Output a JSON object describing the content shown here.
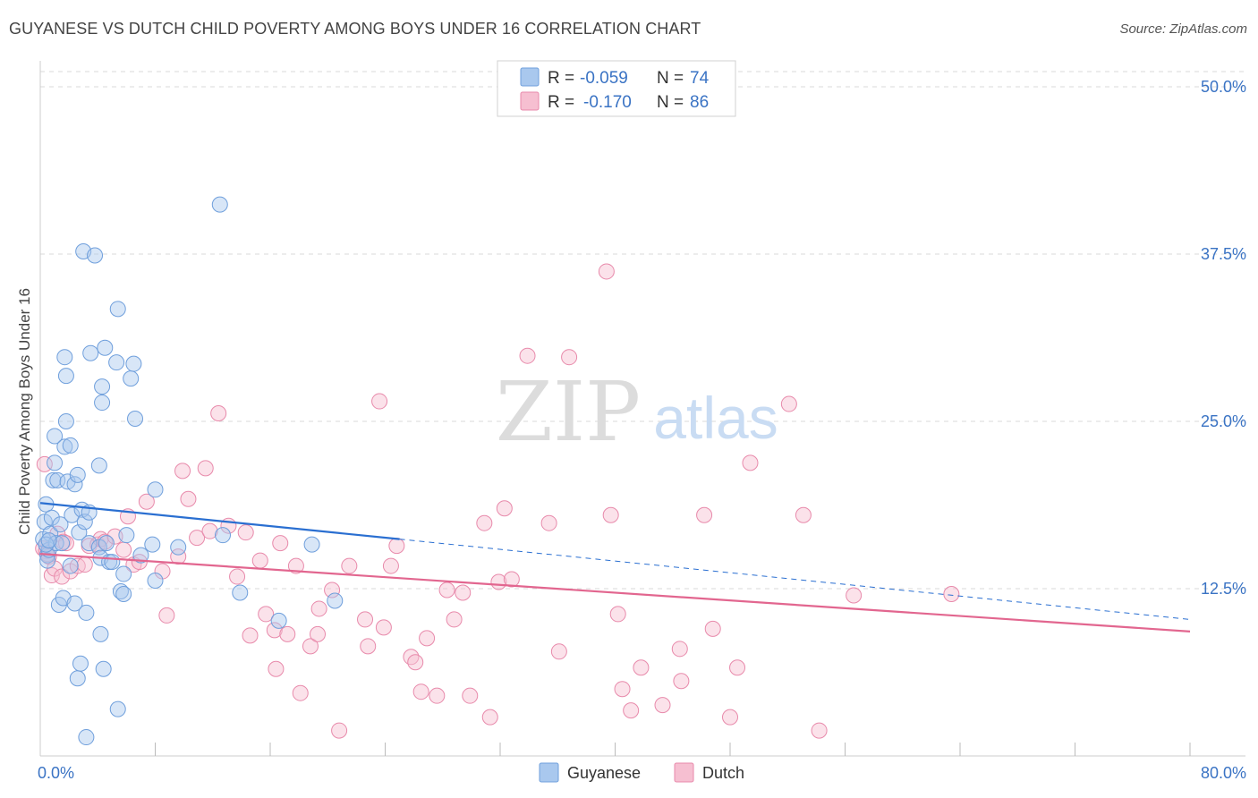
{
  "title": "GUYANESE VS DUTCH CHILD POVERTY AMONG BOYS UNDER 16 CORRELATION CHART",
  "source": "Source: ZipAtlas.com",
  "watermark": {
    "zip": "ZIP",
    "atlas": "atlas"
  },
  "colors": {
    "guyanese_fill": "#a9c8ee",
    "guyanese_stroke": "#6f9fdc",
    "guyanese_line": "#2a6fd1",
    "dutch_fill": "#f6bfd1",
    "dutch_stroke": "#e88aab",
    "dutch_line": "#e2668f",
    "tick_text": "#3a73c4",
    "grid": "#d9d9d9"
  },
  "stats": [
    {
      "r_label": "R =",
      "r": "-0.059",
      "n_label": "N =",
      "n": "74"
    },
    {
      "r_label": "R =",
      "r": "-0.170",
      "n_label": "N =",
      "n": "86"
    }
  ],
  "chart_data": {
    "type": "scatter",
    "title": "GUYANESE VS DUTCH CHILD POVERTY AMONG BOYS UNDER 16 CORRELATION CHART",
    "xlabel": "",
    "ylabel": "Child Poverty Among Boys Under 16",
    "xlim": [
      0,
      80
    ],
    "ylim": [
      0,
      50
    ],
    "grid": true,
    "y_ticks": [
      12.5,
      25.0,
      37.5,
      50.0
    ],
    "y_tick_labels": [
      "12.5%",
      "25.0%",
      "37.5%",
      "50.0%"
    ],
    "x_tick_labels": [
      "0.0%",
      "80.0%"
    ],
    "legend": [
      "Guyanese",
      "Dutch"
    ],
    "legend_position": "bottom-center",
    "series": [
      {
        "name": "Guyanese",
        "points": [
          [
            0.2,
            16.2
          ],
          [
            0.3,
            17.5
          ],
          [
            0.4,
            18.8
          ],
          [
            0.5,
            15.0
          ],
          [
            0.5,
            14.6
          ],
          [
            0.6,
            15.4
          ],
          [
            0.7,
            16.6
          ],
          [
            0.8,
            17.8
          ],
          [
            0.9,
            20.6
          ],
          [
            1.0,
            23.9
          ],
          [
            1.0,
            21.9
          ],
          [
            1.1,
            15.9
          ],
          [
            1.2,
            20.6
          ],
          [
            1.3,
            11.3
          ],
          [
            1.4,
            17.3
          ],
          [
            1.5,
            15.9
          ],
          [
            1.6,
            11.8
          ],
          [
            1.7,
            23.1
          ],
          [
            1.7,
            29.8
          ],
          [
            1.8,
            25.0
          ],
          [
            1.8,
            28.4
          ],
          [
            1.9,
            20.5
          ],
          [
            2.1,
            23.2
          ],
          [
            2.1,
            14.2
          ],
          [
            2.2,
            18.0
          ],
          [
            2.4,
            11.4
          ],
          [
            2.4,
            20.3
          ],
          [
            2.6,
            21.0
          ],
          [
            2.6,
            5.8
          ],
          [
            2.7,
            16.7
          ],
          [
            2.8,
            6.9
          ],
          [
            2.9,
            18.4
          ],
          [
            3.0,
            37.7
          ],
          [
            3.1,
            17.5
          ],
          [
            3.2,
            1.4
          ],
          [
            3.2,
            10.7
          ],
          [
            3.4,
            18.2
          ],
          [
            3.4,
            15.9
          ],
          [
            3.5,
            30.1
          ],
          [
            3.8,
            37.4
          ],
          [
            4.1,
            15.6
          ],
          [
            4.1,
            21.7
          ],
          [
            4.2,
            14.8
          ],
          [
            4.2,
            9.1
          ],
          [
            4.3,
            26.4
          ],
          [
            4.3,
            27.6
          ],
          [
            4.4,
            6.5
          ],
          [
            4.5,
            30.5
          ],
          [
            4.6,
            15.9
          ],
          [
            4.8,
            14.5
          ],
          [
            5.0,
            14.5
          ],
          [
            5.3,
            29.4
          ],
          [
            5.4,
            33.4
          ],
          [
            5.4,
            3.5
          ],
          [
            5.6,
            12.3
          ],
          [
            5.8,
            13.6
          ],
          [
            5.8,
            12.1
          ],
          [
            6.0,
            16.5
          ],
          [
            6.3,
            28.2
          ],
          [
            6.5,
            29.3
          ],
          [
            6.6,
            25.2
          ],
          [
            7.0,
            15.0
          ],
          [
            7.8,
            15.8
          ],
          [
            8.0,
            19.9
          ],
          [
            8.0,
            13.1
          ],
          [
            9.6,
            15.6
          ],
          [
            12.5,
            41.2
          ],
          [
            12.7,
            16.5
          ],
          [
            13.9,
            12.2
          ],
          [
            16.6,
            10.1
          ],
          [
            18.9,
            15.8
          ],
          [
            20.5,
            11.6
          ],
          [
            0.4,
            15.8
          ],
          [
            0.6,
            16.1
          ]
        ]
      },
      {
        "name": "Dutch",
        "points": [
          [
            0.2,
            15.5
          ],
          [
            0.3,
            21.8
          ],
          [
            0.4,
            15.3
          ],
          [
            0.5,
            15.1
          ],
          [
            0.6,
            14.9
          ],
          [
            0.8,
            13.5
          ],
          [
            1.0,
            14.0
          ],
          [
            1.2,
            16.6
          ],
          [
            1.5,
            13.4
          ],
          [
            1.6,
            16.0
          ],
          [
            1.8,
            15.9
          ],
          [
            2.1,
            13.8
          ],
          [
            2.6,
            14.2
          ],
          [
            3.1,
            14.3
          ],
          [
            3.4,
            15.7
          ],
          [
            4.0,
            15.8
          ],
          [
            4.2,
            16.2
          ],
          [
            4.5,
            16.0
          ],
          [
            5.2,
            16.4
          ],
          [
            5.8,
            15.4
          ],
          [
            6.1,
            17.9
          ],
          [
            6.5,
            14.3
          ],
          [
            6.9,
            14.5
          ],
          [
            7.4,
            19.0
          ],
          [
            8.5,
            13.8
          ],
          [
            8.8,
            10.5
          ],
          [
            9.6,
            14.9
          ],
          [
            9.9,
            21.3
          ],
          [
            10.3,
            19.2
          ],
          [
            10.9,
            16.3
          ],
          [
            11.5,
            21.5
          ],
          [
            11.8,
            16.8
          ],
          [
            12.4,
            25.6
          ],
          [
            13.1,
            17.2
          ],
          [
            13.7,
            13.4
          ],
          [
            14.3,
            16.7
          ],
          [
            14.6,
            9.0
          ],
          [
            15.3,
            14.6
          ],
          [
            15.7,
            10.6
          ],
          [
            16.3,
            9.4
          ],
          [
            16.4,
            6.5
          ],
          [
            16.7,
            15.9
          ],
          [
            17.2,
            9.1
          ],
          [
            17.8,
            14.2
          ],
          [
            18.1,
            4.7
          ],
          [
            18.8,
            8.2
          ],
          [
            19.3,
            9.1
          ],
          [
            19.4,
            11.0
          ],
          [
            20.3,
            12.4
          ],
          [
            20.8,
            1.9
          ],
          [
            21.5,
            14.2
          ],
          [
            22.6,
            10.2
          ],
          [
            22.8,
            8.2
          ],
          [
            23.6,
            26.5
          ],
          [
            23.9,
            9.6
          ],
          [
            24.4,
            14.2
          ],
          [
            24.8,
            15.7
          ],
          [
            25.8,
            7.4
          ],
          [
            26.1,
            7.0
          ],
          [
            26.5,
            4.8
          ],
          [
            26.9,
            8.8
          ],
          [
            27.6,
            4.5
          ],
          [
            28.3,
            12.4
          ],
          [
            28.8,
            10.2
          ],
          [
            29.4,
            12.2
          ],
          [
            29.9,
            4.5
          ],
          [
            30.9,
            17.4
          ],
          [
            31.3,
            2.9
          ],
          [
            31.9,
            13.0
          ],
          [
            32.3,
            18.5
          ],
          [
            32.8,
            13.2
          ],
          [
            33.9,
            29.9
          ],
          [
            35.4,
            17.4
          ],
          [
            36.1,
            7.8
          ],
          [
            36.8,
            29.8
          ],
          [
            39.4,
            36.2
          ],
          [
            39.7,
            18.0
          ],
          [
            40.2,
            10.6
          ],
          [
            40.5,
            5.0
          ],
          [
            41.1,
            3.4
          ],
          [
            41.8,
            6.6
          ],
          [
            43.3,
            3.8
          ],
          [
            44.5,
            8.0
          ],
          [
            44.6,
            5.6
          ],
          [
            46.2,
            18.0
          ],
          [
            46.8,
            9.5
          ]
        ]
      }
    ],
    "extra_dutch_points": [
      [
        48.0,
        2.9
      ],
      [
        48.5,
        6.6
      ],
      [
        49.4,
        21.9
      ],
      [
        52.1,
        26.3
      ],
      [
        53.1,
        18.0
      ],
      [
        54.2,
        1.9
      ],
      [
        56.6,
        12.0
      ],
      [
        63.4,
        12.1
      ]
    ],
    "trend_lines": [
      {
        "name": "Guyanese",
        "solid": [
          [
            0,
            18.9
          ],
          [
            25,
            16.2
          ]
        ],
        "dashed": [
          [
            25,
            16.2
          ],
          [
            80,
            10.2
          ]
        ]
      },
      {
        "name": "Dutch",
        "solid": [
          [
            0,
            15.1
          ],
          [
            80,
            9.3
          ]
        ]
      }
    ]
  }
}
